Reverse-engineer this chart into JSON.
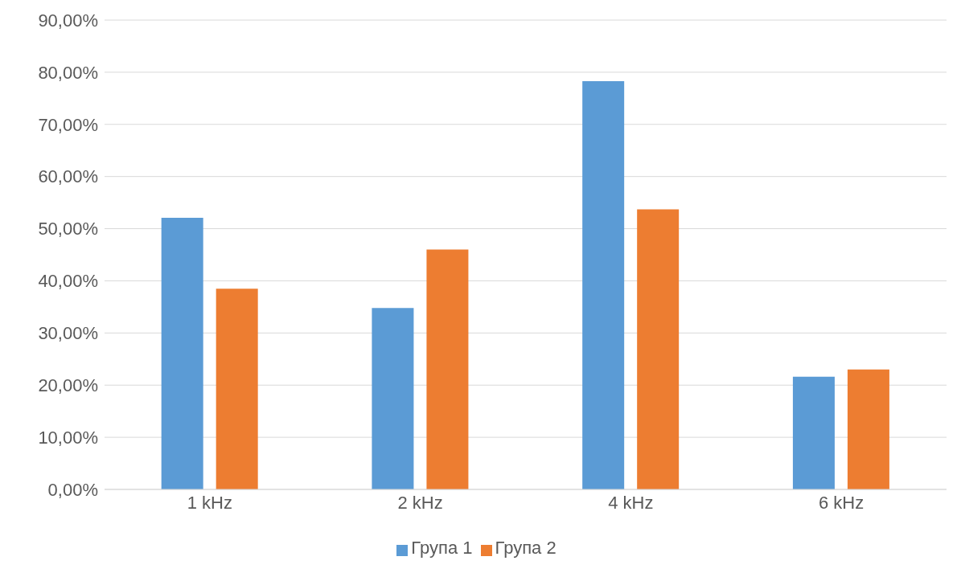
{
  "chart_data": {
    "type": "bar",
    "categories": [
      "1 kHz",
      "2 kHz",
      "4 kHz",
      "6 kHz"
    ],
    "series": [
      {
        "name": "Група 1",
        "color": "#5b9bd5",
        "values": [
          52.1,
          34.8,
          78.3,
          21.6
        ]
      },
      {
        "name": "Група 2",
        "color": "#ed7d31",
        "values": [
          38.5,
          46.0,
          53.7,
          23.0
        ]
      }
    ],
    "ylim": [
      0,
      90
    ],
    "yticks": [
      {
        "value": 0,
        "label": "0,00%"
      },
      {
        "value": 10,
        "label": "10,00%"
      },
      {
        "value": 20,
        "label": "20,00%"
      },
      {
        "value": 30,
        "label": "30,00%"
      },
      {
        "value": 40,
        "label": "40,00%"
      },
      {
        "value": 50,
        "label": "50,00%"
      },
      {
        "value": 60,
        "label": "60,00%"
      },
      {
        "value": 70,
        "label": "70,00%"
      },
      {
        "value": 80,
        "label": "80,00%"
      },
      {
        "value": 90,
        "label": "90,00%"
      }
    ],
    "grid": "y",
    "legend": "bottom"
  }
}
